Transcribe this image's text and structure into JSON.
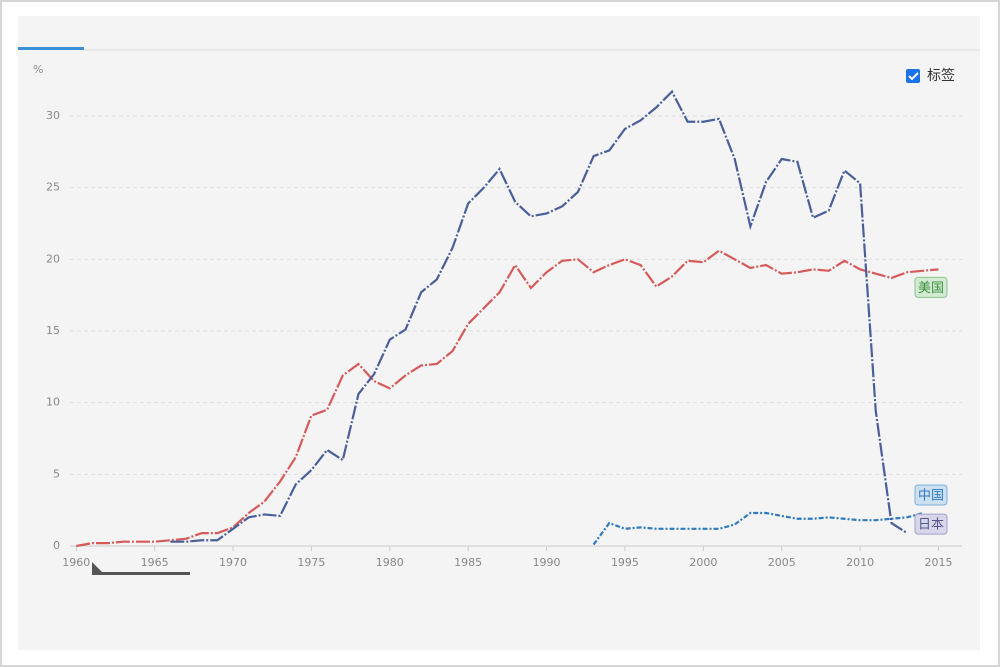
{
  "chart_data": {
    "type": "line",
    "y_label": "%",
    "label_toggle": "标签",
    "x": [
      1960,
      1961,
      1962,
      1963,
      1964,
      1965,
      1966,
      1967,
      1968,
      1969,
      1970,
      1971,
      1972,
      1973,
      1974,
      1975,
      1976,
      1977,
      1978,
      1979,
      1980,
      1981,
      1982,
      1983,
      1984,
      1985,
      1986,
      1987,
      1988,
      1989,
      1990,
      1991,
      1992,
      1993,
      1994,
      1995,
      1996,
      1997,
      1998,
      1999,
      2000,
      2001,
      2002,
      2003,
      2004,
      2005,
      2006,
      2007,
      2008,
      2009,
      2010,
      2011,
      2012,
      2013,
      2014,
      2015
    ],
    "series": [
      {
        "name": "美国",
        "color": "#d65a5a",
        "values": [
          0.0,
          0.2,
          0.2,
          0.3,
          0.3,
          0.3,
          0.4,
          0.5,
          0.9,
          0.9,
          1.3,
          2.3,
          3.1,
          4.5,
          6.2,
          9.1,
          9.5,
          11.9,
          12.7,
          11.5,
          11.0,
          11.9,
          12.6,
          12.7,
          13.6,
          15.5,
          16.6,
          17.7,
          19.6,
          18.0,
          19.1,
          19.9,
          20.0,
          19.1,
          19.6,
          20.0,
          19.6,
          18.1,
          18.8,
          19.9,
          19.8,
          20.6,
          20.0,
          19.4,
          19.6,
          19.0,
          19.1,
          19.3,
          19.2,
          19.9,
          19.3,
          19.0,
          18.7,
          19.1,
          19.2,
          19.3
        ]
      },
      {
        "name": "中国",
        "color": "#2e7bbf",
        "values": [
          null,
          null,
          null,
          null,
          null,
          null,
          null,
          null,
          null,
          null,
          null,
          null,
          null,
          null,
          null,
          null,
          null,
          null,
          null,
          null,
          null,
          null,
          null,
          null,
          null,
          null,
          null,
          null,
          null,
          null,
          null,
          null,
          null,
          0.1,
          1.6,
          1.2,
          1.3,
          1.2,
          1.2,
          1.2,
          1.2,
          1.2,
          1.5,
          2.3,
          2.3,
          2.1,
          1.9,
          1.9,
          2.0,
          1.9,
          1.8,
          1.8,
          1.9,
          2.0,
          2.3,
          null
        ]
      },
      {
        "name": "日本",
        "color": "#4a5f9a",
        "values": [
          null,
          null,
          null,
          null,
          null,
          null,
          0.3,
          0.3,
          0.4,
          0.4,
          1.2,
          2.0,
          2.2,
          2.1,
          4.3,
          5.3,
          6.7,
          6.0,
          10.6,
          12.0,
          14.4,
          15.1,
          17.7,
          18.6,
          20.8,
          23.9,
          25.0,
          26.3,
          24.0,
          23.0,
          23.2,
          23.7,
          24.7,
          27.2,
          27.6,
          29.1,
          29.7,
          30.6,
          31.7,
          29.6,
          29.6,
          29.8,
          27.0,
          22.3,
          25.4,
          27.0,
          26.8,
          22.9,
          23.4,
          26.2,
          25.3,
          9.4,
          1.6,
          0.9,
          null,
          null
        ]
      }
    ],
    "xlim": [
      1959.6,
      2016.5
    ],
    "xticks": [
      1960,
      1965,
      1970,
      1975,
      1980,
      1985,
      1990,
      1995,
      2000,
      2005,
      2010,
      2015
    ],
    "ylim": [
      0,
      30
    ],
    "yticks": [
      0,
      5,
      10,
      15,
      20,
      25,
      30
    ],
    "grid": true
  }
}
